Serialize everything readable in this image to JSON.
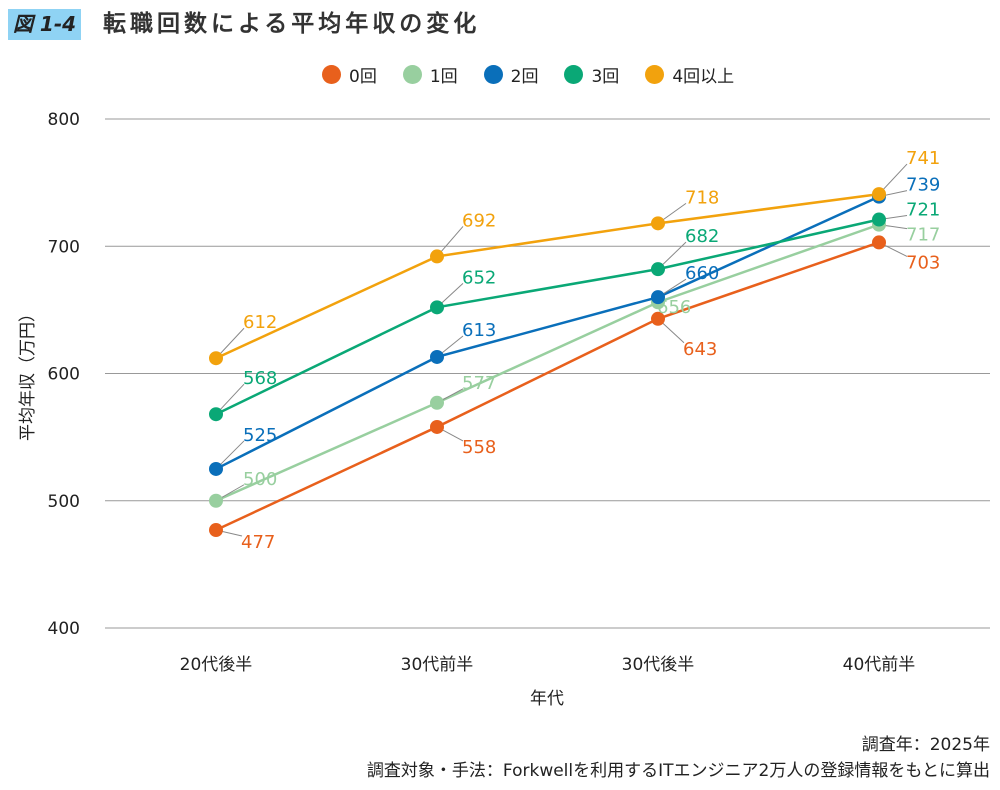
{
  "figure_label": "図 1-4",
  "chart_data": {
    "type": "line",
    "title": "転職回数による平均年収の変化",
    "xlabel": "年代",
    "ylabel": "平均年収（万円）",
    "categories": [
      "20代後半",
      "30代前半",
      "30代後半",
      "40代前半"
    ],
    "ylim": [
      400,
      800
    ],
    "yticks": [
      400,
      500,
      600,
      700,
      800
    ],
    "grid": true,
    "legend_position": "top",
    "series": [
      {
        "name": "0回",
        "color": "#e8601c",
        "values": [
          477,
          558,
          643,
          703
        ]
      },
      {
        "name": "1回",
        "color": "#98cf9f",
        "values": [
          500,
          577,
          656,
          717
        ]
      },
      {
        "name": "2回",
        "color": "#0a6fba",
        "values": [
          525,
          613,
          660,
          739
        ]
      },
      {
        "name": "3回",
        "color": "#0aa876",
        "values": [
          568,
          652,
          682,
          721
        ]
      },
      {
        "name": "4回以上",
        "color": "#f2a20d",
        "values": [
          612,
          692,
          718,
          741
        ]
      }
    ]
  },
  "notes": [
    "調査年：2025年",
    "調査対象・手法：Forkwellを利用するITエンジニア2万人の登録情報をもとに算出"
  ]
}
